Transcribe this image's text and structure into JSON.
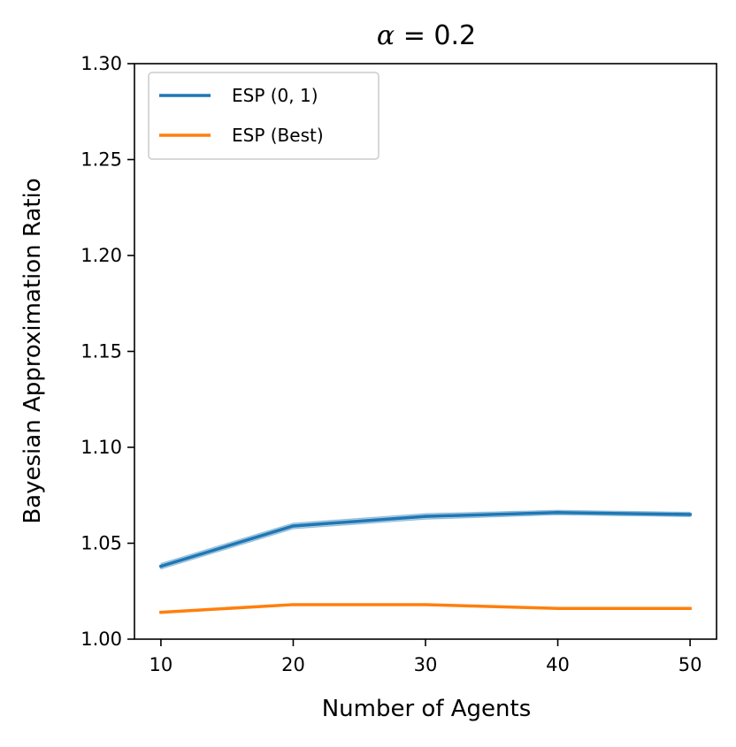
{
  "chart_data": {
    "type": "line",
    "title": {
      "symbol": "α",
      "rest": " = 0.2"
    },
    "xlabel": "Number of Agents",
    "ylabel": "Bayesian Approximation Ratio",
    "x": [
      10,
      20,
      30,
      40,
      50
    ],
    "xlim": [
      8,
      52
    ],
    "ylim": [
      1.0,
      1.3
    ],
    "xticks": [
      10,
      20,
      30,
      40,
      50
    ],
    "xtick_labels": [
      "10",
      "20",
      "30",
      "40",
      "50"
    ],
    "yticks": [
      1.0,
      1.05,
      1.1,
      1.15,
      1.2,
      1.25,
      1.3
    ],
    "ytick_labels": [
      "1.00",
      "1.05",
      "1.10",
      "1.15",
      "1.20",
      "1.25",
      "1.30"
    ],
    "grid": false,
    "legend_position": "top-left",
    "series": [
      {
        "name": "ESP (0, 1)",
        "color": "#1f77b4",
        "band_color": "#1f77b4",
        "values": [
          1.038,
          1.059,
          1.064,
          1.066,
          1.065
        ],
        "band_lower": [
          1.0365,
          1.0575,
          1.0625,
          1.0648,
          1.0638
        ],
        "band_upper": [
          1.0395,
          1.0605,
          1.0655,
          1.0672,
          1.0662
        ]
      },
      {
        "name": "ESP (Best)",
        "color": "#ff7f0e",
        "values": [
          1.014,
          1.018,
          1.018,
          1.016,
          1.016
        ]
      }
    ]
  }
}
